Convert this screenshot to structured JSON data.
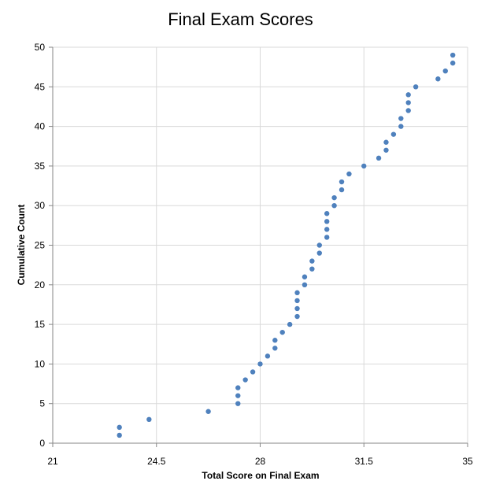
{
  "chart_data": {
    "type": "scatter",
    "title": "Final Exam Scores",
    "xlabel": "Total Score on Final Exam",
    "ylabel": "Cumulative Count",
    "xlim": [
      21,
      35
    ],
    "ylim": [
      0,
      50
    ],
    "xticks": [
      21,
      24.5,
      28,
      31.5,
      35
    ],
    "xtick_labels": [
      "21",
      "24.5",
      "28",
      "31.5",
      "35"
    ],
    "yticks": [
      0,
      5,
      10,
      15,
      20,
      25,
      30,
      35,
      40,
      45,
      50
    ],
    "ytick_labels": [
      "0",
      "5",
      "10",
      "15",
      "20",
      "25",
      "30",
      "35",
      "40",
      "45",
      "50"
    ],
    "grid": true,
    "legend": null,
    "marker_color": "#4F81BD",
    "series": [
      {
        "name": "Cumulative Count",
        "x": [
          23.25,
          23.25,
          24.25,
          26.25,
          27.25,
          27.25,
          27.25,
          27.5,
          27.75,
          28,
          28.25,
          28.5,
          28.5,
          28.75,
          29,
          29.25,
          29.25,
          29.25,
          29.25,
          29.5,
          29.5,
          29.75,
          29.75,
          30,
          30,
          30.25,
          30.25,
          30.25,
          30.25,
          30.5,
          30.5,
          30.75,
          30.75,
          31,
          31.5,
          32,
          32.25,
          32.25,
          32.5,
          32.75,
          32.75,
          33,
          33,
          33,
          33.25,
          34,
          34.25,
          34.5,
          34.5
        ],
        "y": [
          1,
          2,
          3,
          4,
          5,
          6,
          7,
          8,
          9,
          10,
          11,
          12,
          13,
          14,
          15,
          16,
          17,
          18,
          19,
          20,
          21,
          22,
          23,
          24,
          25,
          26,
          27,
          28,
          29,
          30,
          31,
          32,
          33,
          34,
          35,
          36,
          37,
          38,
          39,
          40,
          41,
          42,
          43,
          44,
          45,
          46,
          47,
          48,
          49
        ]
      }
    ]
  }
}
